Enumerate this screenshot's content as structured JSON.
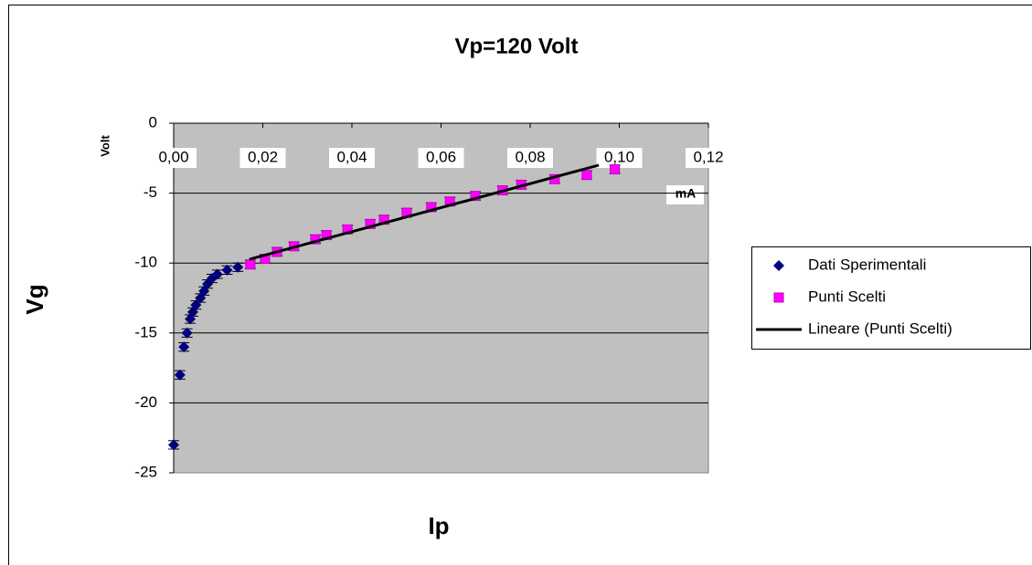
{
  "chart_data": {
    "type": "scatter",
    "title": "Vp=120 Volt",
    "x_label": "Ip",
    "y_label": "Vg",
    "x_unit": "mA",
    "y_unit": "Volt",
    "xlim": [
      0,
      0.12
    ],
    "ylim": [
      -25,
      0
    ],
    "xticks": [
      {
        "value": 0,
        "label": "0,00"
      },
      {
        "value": 0.02,
        "label": "0,02"
      },
      {
        "value": 0.04,
        "label": "0,04"
      },
      {
        "value": 0.06,
        "label": "0,06"
      },
      {
        "value": 0.08,
        "label": "0,08"
      },
      {
        "value": 0.1,
        "label": "0,10"
      },
      {
        "value": 0.12,
        "label": "0,12"
      }
    ],
    "yticks": [
      0,
      -5,
      -10,
      -15,
      -20,
      -25
    ],
    "grid": true,
    "legend": "right",
    "series": [
      {
        "name": "Dati Sperimentali",
        "color": "#000080",
        "marker": "diamond",
        "yerr": 0.3,
        "x": [
          0,
          0.0014,
          0.0023,
          0.003,
          0.0037,
          0.0043,
          0.005,
          0.006,
          0.0068,
          0.0076,
          0.0086,
          0.0098,
          0.012,
          0.0144
        ],
        "values": [
          -23,
          -18,
          -16,
          -15,
          -14,
          -13.5,
          -13,
          -12.5,
          -12,
          -11.5,
          -11.1,
          -10.8,
          -10.5,
          -10.3
        ]
      },
      {
        "name": "Punti Scelti",
        "color": "#ff00ff",
        "marker": "square",
        "yerr": 0.3,
        "x": [
          0.0172,
          0.0205,
          0.0232,
          0.027,
          0.0318,
          0.0343,
          0.039,
          0.0441,
          0.0472,
          0.0523,
          0.0578,
          0.062,
          0.0677,
          0.0738,
          0.078,
          0.0855,
          0.0927,
          0.099
        ],
        "values": [
          -10.1,
          -9.7,
          -9.2,
          -8.8,
          -8.3,
          -8.0,
          -7.6,
          -7.2,
          -6.9,
          -6.4,
          -6.0,
          -5.6,
          -5.2,
          -4.8,
          -4.4,
          -4.0,
          -3.7,
          -3.3
        ]
      },
      {
        "name": "Lineare (Punti Scelti)",
        "color": "#000000",
        "marker": "line",
        "x": [
          0.017,
          0.0954
        ],
        "values": [
          -9.73,
          -3.0
        ]
      }
    ]
  }
}
